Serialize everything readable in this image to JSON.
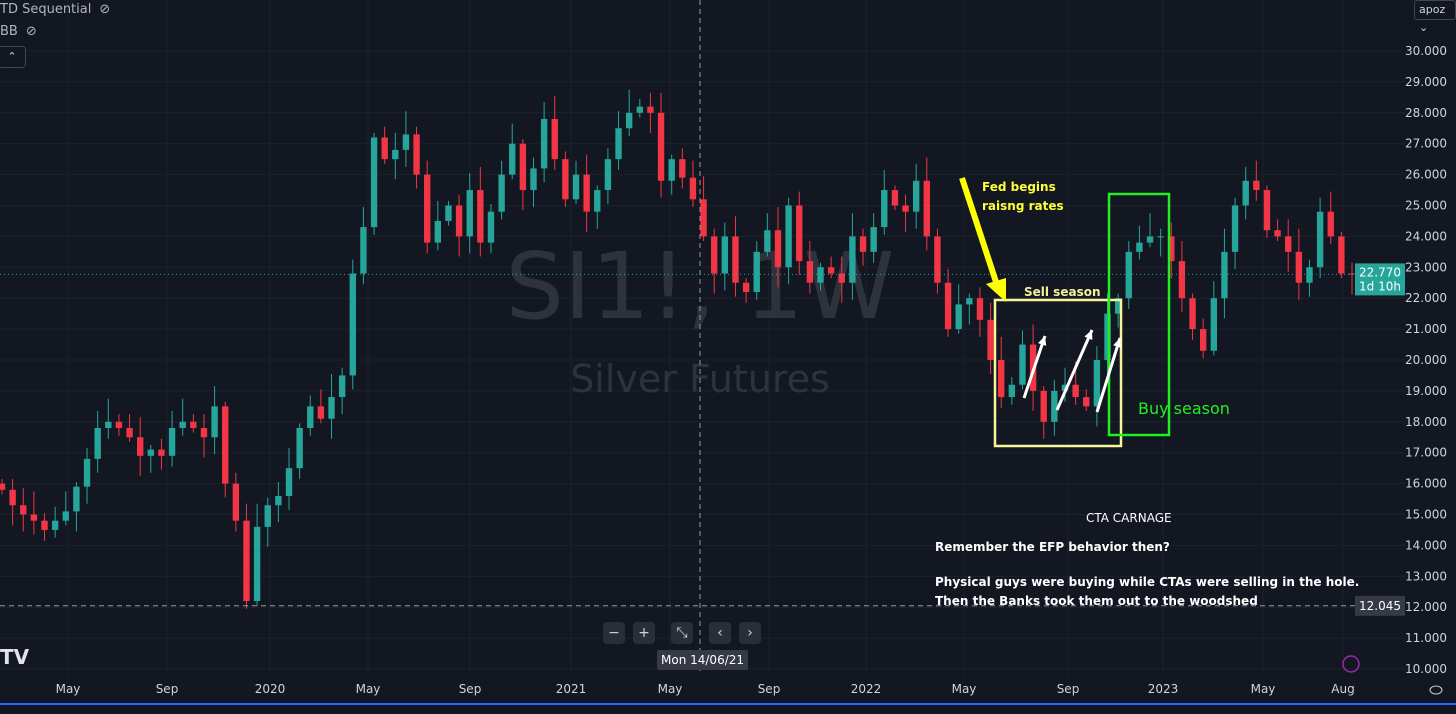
{
  "legend": {
    "indicator1": "TD Sequential",
    "indicator2": "BB",
    "collapse_icon": "chevron-up-icon",
    "visibility_icon": "eye-off-icon"
  },
  "symbol_menu": "apoz ⌄",
  "watermark": {
    "symbol": "SI1!, 1W",
    "name": "Silver Futures"
  },
  "crosshair_date": "Mon 14/06/21",
  "nav_buttons": [
    "−",
    "+",
    "⤡",
    "‹",
    "›"
  ],
  "colors": {
    "up": "#26a69a",
    "down": "#f23645",
    "background": "#131722",
    "grid": "#1e222d",
    "last_price": "#26a69a",
    "yellow": "#ffff00",
    "green": "#22ee22"
  },
  "chart_data": {
    "type": "candlestick",
    "interval": "1W",
    "x_ticks": [
      "May",
      "Sep",
      "2020",
      "May",
      "Sep",
      "2021",
      "May",
      "Sep",
      "2022",
      "May",
      "Sep",
      "2023",
      "May",
      "Aug"
    ],
    "y_ticks": [
      "30.000",
      "29.000",
      "28.000",
      "27.000",
      "26.000",
      "25.000",
      "24.000",
      "23.000",
      "22.000",
      "21.000",
      "20.000",
      "19.000",
      "18.000",
      "17.000",
      "16.000",
      "15.000",
      "14.000",
      "13.000",
      "12.000",
      "11.000",
      "10.000"
    ],
    "ylim": [
      10,
      30
    ],
    "closes": [
      15.8,
      15.3,
      15.0,
      14.8,
      14.5,
      14.8,
      15.1,
      15.9,
      16.8,
      17.8,
      18.0,
      17.8,
      17.5,
      16.9,
      17.1,
      16.9,
      17.8,
      18.0,
      17.8,
      17.5,
      18.5,
      16.0,
      14.8,
      12.2,
      14.6,
      15.3,
      15.6,
      16.5,
      17.8,
      18.5,
      18.1,
      18.8,
      19.5,
      22.8,
      24.3,
      27.2,
      26.5,
      26.8,
      27.3,
      26.0,
      23.8,
      24.5,
      25.0,
      24.0,
      25.5,
      23.8,
      24.8,
      26.0,
      27.0,
      25.5,
      26.2,
      27.8,
      26.5,
      25.2,
      26.0,
      24.8,
      25.5,
      26.5,
      27.5,
      28.0,
      28.2,
      28.0,
      25.8,
      26.5,
      25.9,
      25.2,
      24.0,
      22.8,
      24.0,
      22.5,
      22.2,
      23.5,
      24.2,
      23.0,
      25.0,
      23.2,
      22.5,
      23.0,
      22.8,
      22.5,
      24.0,
      23.5,
      24.3,
      25.5,
      25.0,
      24.8,
      25.8,
      24.0,
      22.5,
      21.0,
      21.8,
      22.0,
      21.3,
      20.0,
      18.8,
      19.2,
      20.5,
      19.0,
      18.0,
      19.0,
      19.2,
      18.8,
      18.5,
      20.0,
      21.5,
      22.0,
      23.5,
      23.8,
      24.0,
      24.0,
      23.2,
      22.0,
      21.0,
      20.3,
      22.0,
      23.5,
      25.0,
      25.8,
      25.5,
      24.2,
      24.0,
      23.5,
      22.5,
      23.0,
      24.8,
      24.0,
      22.8,
      22.77
    ],
    "last_price": {
      "value": "22.770",
      "countdown": "1d 10h"
    },
    "crosshair_price": "12.045"
  },
  "annotations": {
    "fed": "Fed begins\nraisng rates",
    "sell": "Sell season",
    "buy": "Buy season",
    "cta_title": "CTA CARNAGE",
    "cta_line1": "Remember the EFP behavior then?",
    "cta_line2": "Physical guys were buying while CTAs were selling in the hole.",
    "cta_line3": "Then the Banks took them out to the woodshed"
  }
}
